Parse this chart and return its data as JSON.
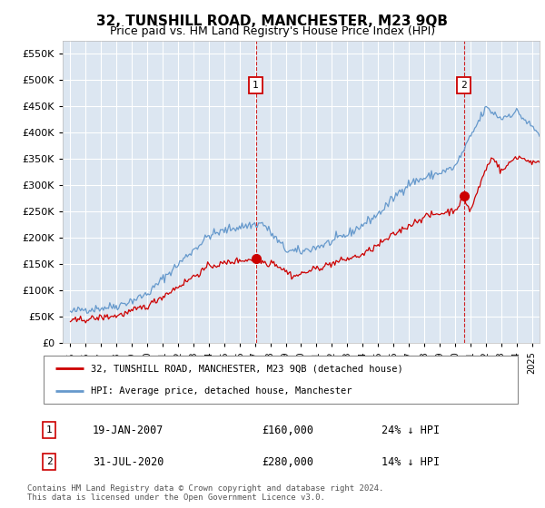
{
  "title": "32, TUNSHILL ROAD, MANCHESTER, M23 9QB",
  "subtitle": "Price paid vs. HM Land Registry's House Price Index (HPI)",
  "legend_line1": "32, TUNSHILL ROAD, MANCHESTER, M23 9QB (detached house)",
  "legend_line2": "HPI: Average price, detached house, Manchester",
  "footer": "Contains HM Land Registry data © Crown copyright and database right 2024.\nThis data is licensed under the Open Government Licence v3.0.",
  "transaction1_date": "19-JAN-2007",
  "transaction1_price": "£160,000",
  "transaction1_hpi": "24% ↓ HPI",
  "transaction1_year": 2007.05,
  "transaction1_value": 160000,
  "transaction2_date": "31-JUL-2020",
  "transaction2_price": "£280,000",
  "transaction2_hpi": "14% ↓ HPI",
  "transaction2_year": 2020.58,
  "transaction2_value": 280000,
  "yticks": [
    0,
    50000,
    100000,
    150000,
    200000,
    250000,
    300000,
    350000,
    400000,
    450000,
    500000,
    550000
  ],
  "ylim_max": 575000,
  "xlim_start": 1994.5,
  "xlim_end": 2025.5,
  "bg_color": "#dce6f1",
  "grid_color": "#ffffff",
  "red_color": "#cc0000",
  "blue_color": "#6699cc",
  "title_fontsize": 11,
  "subtitle_fontsize": 9
}
